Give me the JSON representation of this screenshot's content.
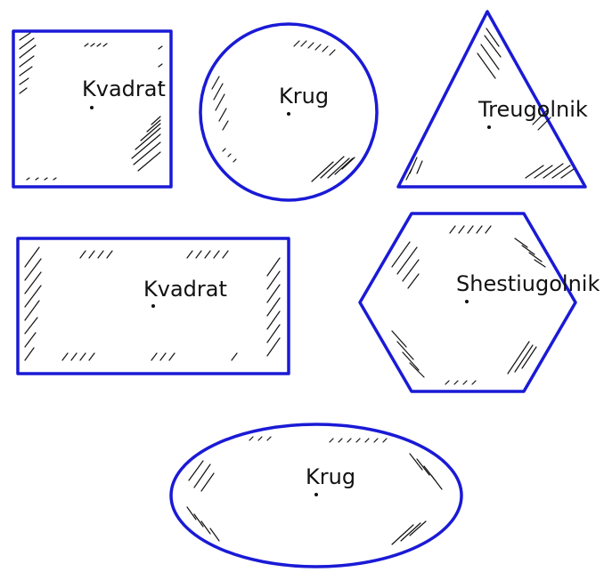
{
  "colors": {
    "outline": "#1a1ad6",
    "ink": "#111111",
    "background": "#ffffff"
  },
  "shapes": [
    {
      "kind": "square",
      "label": "Kvadrat"
    },
    {
      "kind": "circle",
      "label": "Krug"
    },
    {
      "kind": "triangle",
      "label": "Treugolnik"
    },
    {
      "kind": "rectangle",
      "label": "Kvadrat"
    },
    {
      "kind": "hexagon",
      "label": "Shestiugolnik"
    },
    {
      "kind": "ellipse",
      "label": "Krug"
    }
  ]
}
